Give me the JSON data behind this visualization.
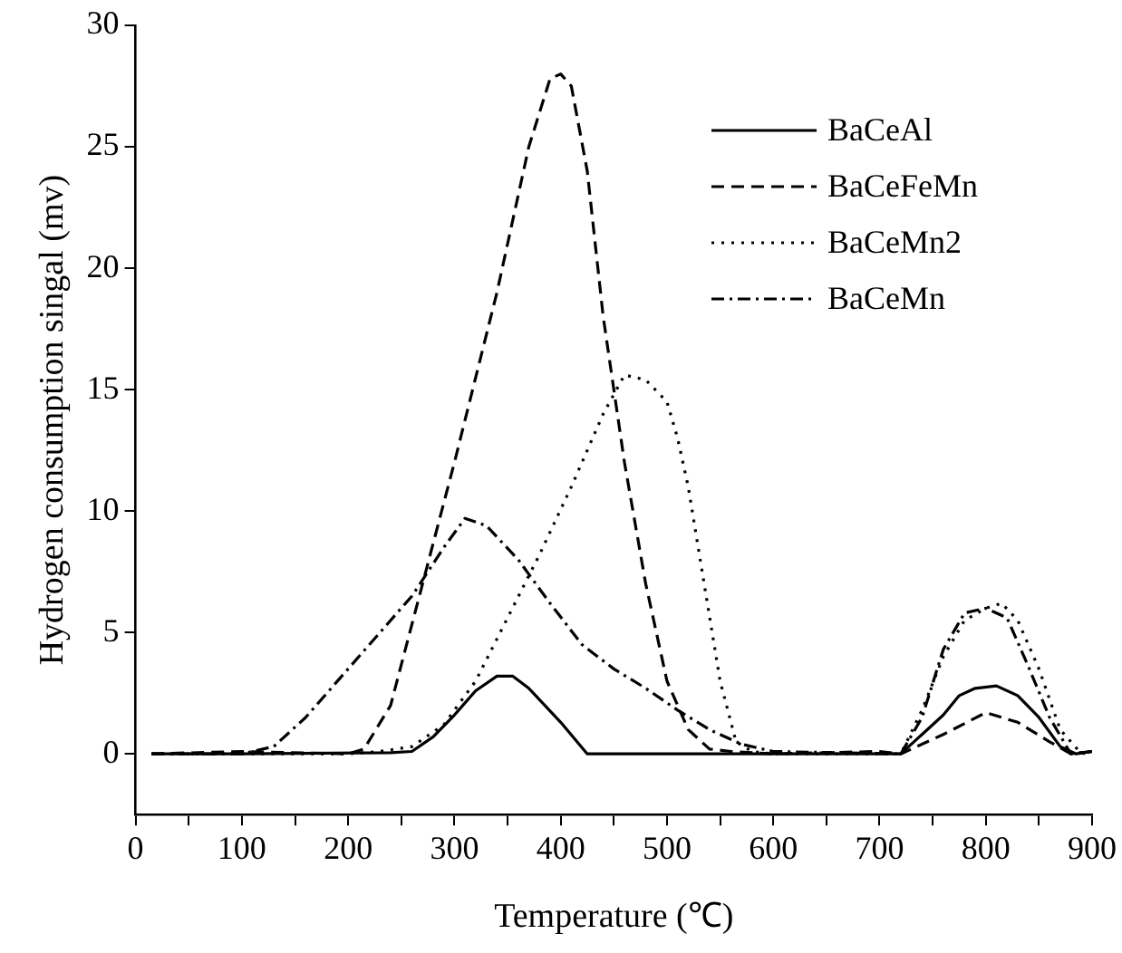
{
  "chart_data": {
    "type": "line",
    "xlabel": "Temperature (℃)",
    "ylabel": "Hydrogen consumption singal (mv)",
    "xlim": [
      0,
      900
    ],
    "xticks": [
      0,
      {
        "value": 50,
        "label": null
      },
      100,
      {
        "value": 150,
        "label": null
      },
      200,
      {
        "value": 250,
        "label": null
      },
      300,
      {
        "value": 350,
        "label": null
      },
      400,
      {
        "value": 450,
        "label": null
      },
      500,
      {
        "value": 550,
        "label": null
      },
      600,
      {
        "value": 650,
        "label": null
      },
      700,
      {
        "value": 750,
        "label": null
      },
      800,
      {
        "value": 850,
        "label": null
      },
      900
    ],
    "ylim": [
      -2.5,
      30
    ],
    "yticks": [
      0,
      5,
      10,
      15,
      20,
      25,
      30
    ],
    "grid": false,
    "legend": "top right",
    "marker": "none",
    "series": [
      {
        "name": "BaCeAl",
        "color": "#000000",
        "line_style": "solid",
        "x": [
          15,
          100,
          240,
          260,
          280,
          300,
          320,
          340,
          355,
          370,
          400,
          425,
          500,
          600,
          700,
          720,
          740,
          760,
          775,
          790,
          810,
          830,
          850,
          870,
          885,
          900
        ],
        "values": [
          0,
          0,
          0.05,
          0.1,
          0.7,
          1.6,
          2.6,
          3.2,
          3.2,
          2.7,
          1.3,
          0,
          0,
          0,
          0,
          0,
          0.8,
          1.6,
          2.4,
          2.7,
          2.8,
          2.4,
          1.5,
          0.3,
          0,
          0.1
        ]
      },
      {
        "name": "BaCeFeMn",
        "color": "#000000",
        "line_style": "dashed",
        "x": [
          15,
          100,
          200,
          215,
          240,
          270,
          300,
          340,
          370,
          390,
          400,
          410,
          425,
          440,
          460,
          480,
          500,
          520,
          540,
          560,
          600,
          700,
          720,
          760,
          800,
          830,
          860,
          880,
          900
        ],
        "values": [
          0,
          0.1,
          0,
          0.2,
          2,
          7,
          12,
          19,
          25,
          27.8,
          28,
          27.5,
          24,
          18,
          12,
          7,
          3,
          1,
          0.2,
          0.1,
          0,
          0.1,
          0,
          0.8,
          1.7,
          1.3,
          0.5,
          0,
          0.1
        ]
      },
      {
        "name": "BaCeMn2",
        "color": "#000000",
        "line_style": "dotted",
        "x": [
          15,
          200,
          230,
          260,
          290,
          320,
          350,
          380,
          410,
          440,
          460,
          480,
          500,
          510,
          520,
          535,
          550,
          565,
          580,
          600,
          720,
          740,
          760,
          780,
          800,
          815,
          830,
          850,
          870,
          890,
          900
        ],
        "values": [
          0,
          0,
          0.1,
          0.3,
          1.2,
          3,
          5.6,
          8.2,
          11,
          14,
          15.6,
          15.4,
          14.5,
          13,
          11,
          7,
          3,
          0.5,
          0.1,
          0,
          0,
          1.8,
          4,
          5.5,
          6,
          6.2,
          5.5,
          3.5,
          1,
          0,
          0.1
        ]
      },
      {
        "name": "BaCeMn",
        "color": "#000000",
        "line_style": "dashdot",
        "x": [
          15,
          100,
          130,
          160,
          200,
          230,
          260,
          290,
          310,
          330,
          360,
          390,
          420,
          450,
          480,
          510,
          540,
          570,
          600,
          720,
          740,
          760,
          780,
          800,
          820,
          840,
          860,
          880,
          900
        ],
        "values": [
          0,
          0,
          0.3,
          1.5,
          3.5,
          5,
          6.5,
          8.5,
          9.7,
          9.4,
          8,
          6.2,
          4.5,
          3.5,
          2.7,
          1.8,
          1,
          0.4,
          0.1,
          0,
          1.5,
          4.3,
          5.8,
          6,
          5.6,
          3.6,
          1.5,
          0,
          0.1
        ]
      }
    ]
  }
}
